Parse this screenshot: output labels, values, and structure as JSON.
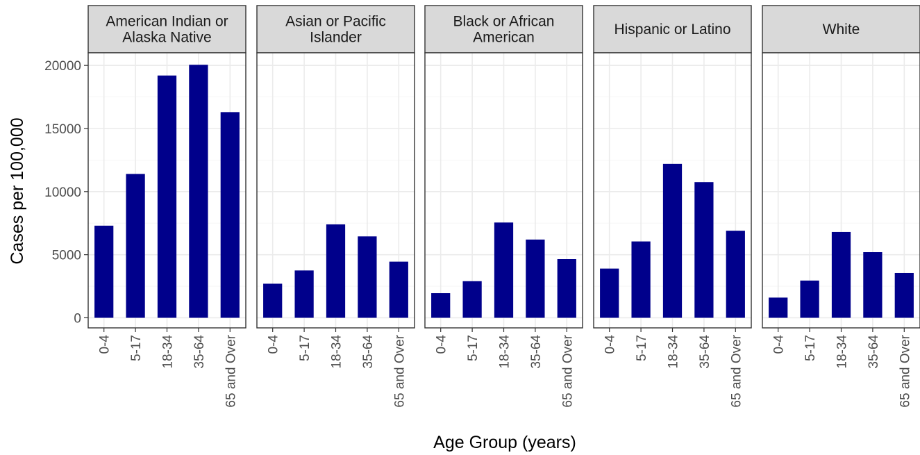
{
  "chart_data": {
    "type": "bar",
    "facet_layout": "1 row of 5 panels",
    "xlabel": "Age Group (years)",
    "ylabel": "Cases per 100,000",
    "categories": [
      "0-4",
      "5-17",
      "18-34",
      "35-64",
      "65 and Over"
    ],
    "ylim": [
      -800,
      21000
    ],
    "y_ticks": [
      0,
      5000,
      10000,
      15000,
      20000
    ],
    "y_tick_labels": [
      "0",
      "5000",
      "10000",
      "15000",
      "20000"
    ],
    "grid": true,
    "bar_color": "#00008b",
    "panels": [
      {
        "name": "American Indian or Alaska Native",
        "strip_lines": [
          "American Indian or",
          "Alaska Native"
        ],
        "values": [
          7300,
          11400,
          19200,
          20050,
          16300
        ]
      },
      {
        "name": "Asian or Pacific Islander",
        "strip_lines": [
          "Asian or Pacific",
          "Islander"
        ],
        "values": [
          2700,
          3750,
          7400,
          6450,
          4450
        ]
      },
      {
        "name": "Black or African American",
        "strip_lines": [
          "Black or African",
          "American"
        ],
        "values": [
          1950,
          2900,
          7550,
          6200,
          4650
        ]
      },
      {
        "name": "Hispanic or Latino",
        "strip_lines": [
          "Hispanic or Latino"
        ],
        "values": [
          3900,
          6050,
          12200,
          10750,
          6900
        ]
      },
      {
        "name": "White",
        "strip_lines": [
          "White"
        ],
        "values": [
          1600,
          2950,
          6800,
          5200,
          3550
        ]
      }
    ]
  }
}
